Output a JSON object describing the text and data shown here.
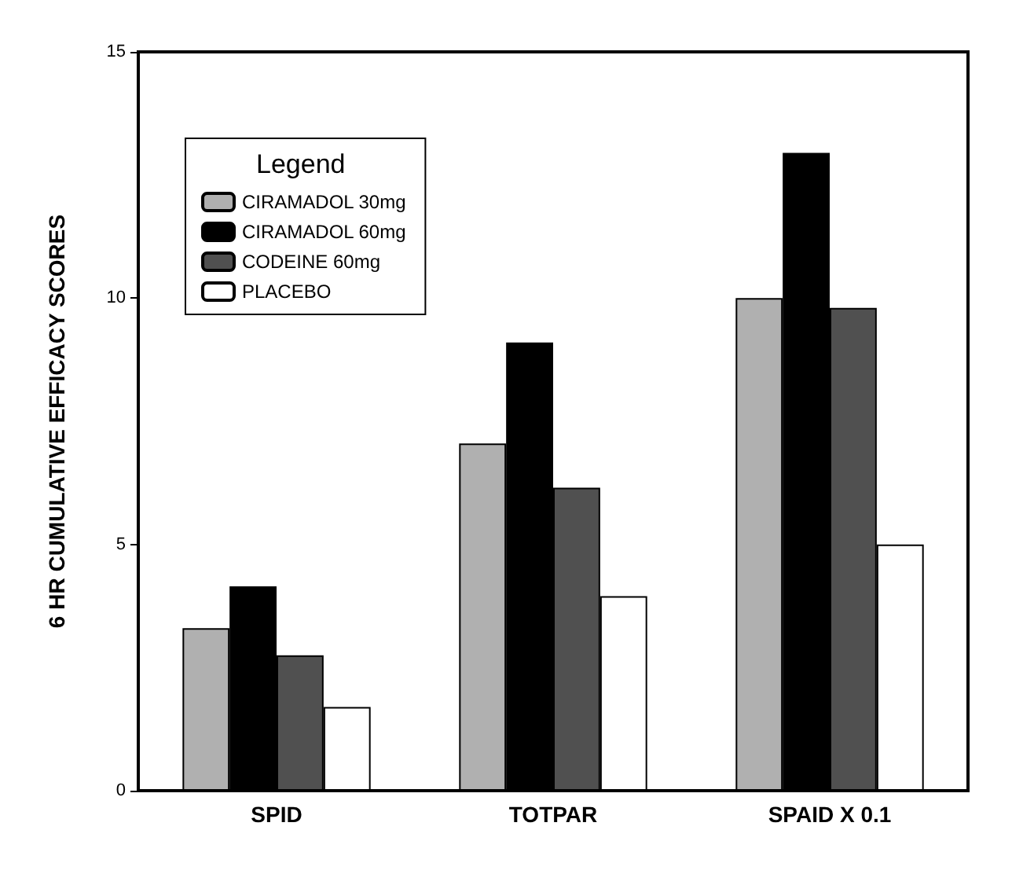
{
  "chart_data": {
    "type": "bar",
    "ylabel": "6 HR CUMULATIVE EFFICACY SCORES",
    "categories": [
      "SPID",
      "TOTPAR",
      "SPAID X 0.1"
    ],
    "legend_title": "Legend",
    "legend": "top left",
    "grid": false,
    "ylim": [
      0,
      15
    ],
    "yticks": [
      0,
      5,
      10,
      15
    ],
    "series": [
      {
        "name": "CIRAMADOL 30mg",
        "color": "#b0b0b0",
        "values": [
          3.3,
          7.05,
          10.0
        ]
      },
      {
        "name": "CIRAMADOL 60mg",
        "color": "#000000",
        "values": [
          4.15,
          9.1,
          12.95
        ]
      },
      {
        "name": "CODEINE 60mg",
        "color": "#505050",
        "values": [
          2.75,
          6.15,
          9.8
        ]
      },
      {
        "name": "PLACEBO",
        "color": "#ffffff",
        "values": [
          1.7,
          3.95,
          5.0
        ]
      }
    ]
  }
}
